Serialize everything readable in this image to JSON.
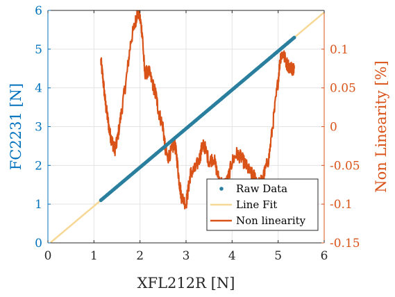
{
  "chart_data": {
    "type": "line",
    "x_axis": {
      "label": "XFL212R [N]",
      "lim": [
        0,
        6
      ],
      "ticks": [
        0,
        1,
        2,
        3,
        4,
        5,
        6
      ]
    },
    "y_left_axis": {
      "label": "FC2231 [N]",
      "lim": [
        0,
        6
      ],
      "ticks": [
        0,
        1,
        2,
        3,
        4,
        5,
        6
      ],
      "color": "#0072BD"
    },
    "y_right_axis": {
      "label": "Non Linearity [%]",
      "lim": [
        -0.15,
        0.15
      ],
      "ticks": [
        -0.15,
        -0.1,
        -0.05,
        0,
        0.05,
        0.1
      ],
      "tick_labels": [
        "-0.15",
        "-0.1",
        "-0.05",
        "0",
        "0.05",
        "0.1"
      ],
      "color": "#D95319"
    },
    "grid": true,
    "legend": {
      "placement": "bottom-right",
      "entries": [
        "Raw Data",
        "Line Fit",
        "Non linearity"
      ]
    },
    "series": [
      {
        "name": "Raw Data",
        "axis": "left",
        "style": "dots",
        "color": "#2A7F9E",
        "x_range": [
          1.15,
          5.35
        ],
        "slope": 1.0,
        "intercept": -0.05
      },
      {
        "name": "Line Fit",
        "axis": "left",
        "style": "line",
        "color": "#F7D794",
        "x": [
          0,
          6
        ],
        "y": [
          -0.05,
          5.95
        ]
      },
      {
        "name": "Non linearity",
        "axis": "right",
        "style": "noisy-line",
        "color": "#D95319",
        "x": [
          1.15,
          1.2,
          1.25,
          1.3,
          1.35,
          1.4,
          1.45,
          1.5,
          1.6,
          1.7,
          1.8,
          1.9,
          1.95,
          2.0,
          2.05,
          2.1,
          2.2,
          2.3,
          2.35,
          2.4,
          2.5,
          2.55,
          2.6,
          2.7,
          2.75,
          2.8,
          2.85,
          2.9,
          3.0,
          3.05,
          3.1,
          3.2,
          3.3,
          3.35,
          3.4,
          3.5,
          3.6,
          3.7,
          3.8,
          3.9,
          4.0,
          4.1,
          4.2,
          4.3,
          4.4,
          4.5,
          4.6,
          4.7,
          4.8,
          4.9,
          5.0,
          5.05,
          5.1,
          5.2,
          5.3,
          5.35
        ],
        "y": [
          0.085,
          0.06,
          0.03,
          0.01,
          -0.01,
          -0.02,
          -0.03,
          -0.02,
          0.02,
          0.06,
          0.11,
          0.135,
          0.15,
          0.14,
          0.12,
          0.07,
          0.07,
          0.05,
          0.04,
          0.02,
          0.0,
          -0.03,
          -0.04,
          -0.03,
          -0.02,
          -0.04,
          -0.07,
          -0.09,
          -0.1,
          -0.08,
          -0.06,
          -0.055,
          -0.04,
          -0.025,
          -0.025,
          -0.045,
          -0.04,
          -0.065,
          -0.075,
          -0.07,
          -0.045,
          -0.035,
          -0.04,
          -0.05,
          -0.06,
          -0.065,
          -0.075,
          -0.06,
          -0.04,
          0.01,
          0.06,
          0.09,
          0.095,
          0.08,
          0.075,
          0.075
        ]
      }
    ]
  }
}
